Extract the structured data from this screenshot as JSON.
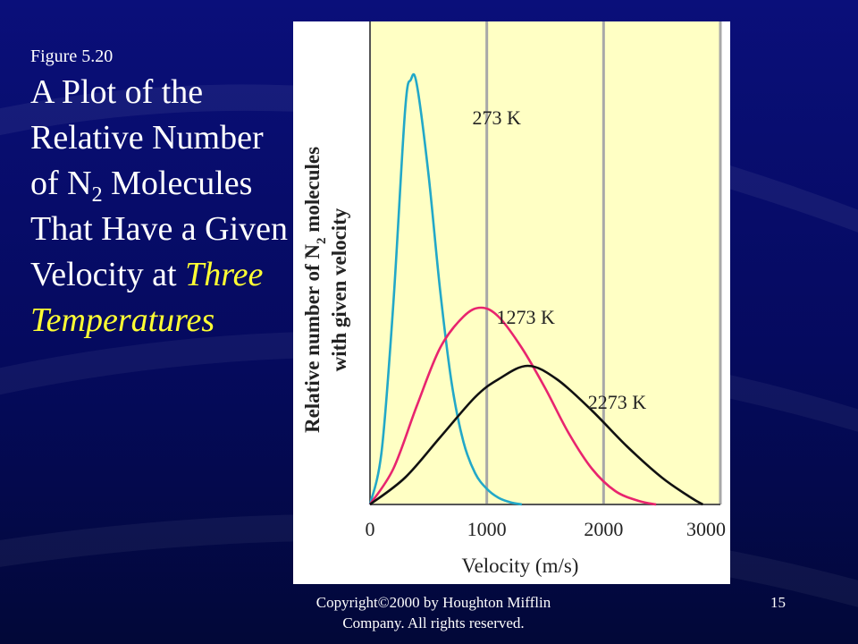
{
  "slide": {
    "figure_label": "Figure 5.20",
    "title_part1": "A Plot of the Relative Number of N",
    "title_sub": "2",
    "title_part2": "Molecules That Have a Given Velocity at",
    "title_emphasis": "Three Temperatures",
    "footer": "Copyright©2000 by Houghton Mifflin Company. All rights reserved.",
    "page_number": "15",
    "colors": {
      "background": "#06106e",
      "title_emphasis": "#ffff33",
      "plot_background": "#ffffc4"
    }
  },
  "chart_data": {
    "type": "line",
    "xlabel": "Velocity (m/s)",
    "ylabel_line1": "Relative number of N",
    "ylabel_sub": "2",
    "ylabel_line1_end": " molecules",
    "ylabel_line2": "with given velocity",
    "xlim": [
      0,
      3000
    ],
    "ylim": [
      0,
      1.0
    ],
    "x_ticks": [
      "0",
      "1000",
      "2000",
      "3000"
    ],
    "grid": "vertical",
    "series": [
      {
        "name": "273 K",
        "color": "#22a8c8",
        "x": [
          0,
          100,
          200,
          300,
          350,
          400,
          500,
          600,
          700,
          800,
          900,
          1000,
          1100,
          1200,
          1300
        ],
        "y": [
          0,
          0.12,
          0.45,
          0.88,
          0.95,
          0.94,
          0.74,
          0.48,
          0.27,
          0.14,
          0.07,
          0.035,
          0.015,
          0.005,
          0
        ]
      },
      {
        "name": "1273 K",
        "color": "#e8246e",
        "x": [
          0,
          200,
          400,
          600,
          800,
          950,
          1100,
          1300,
          1500,
          1700,
          1900,
          2100,
          2300,
          2450
        ],
        "y": [
          0,
          0.08,
          0.22,
          0.35,
          0.42,
          0.44,
          0.42,
          0.35,
          0.26,
          0.16,
          0.08,
          0.03,
          0.008,
          0
        ]
      },
      {
        "name": "2273 K",
        "color": "#111111",
        "x": [
          0,
          300,
          600,
          900,
          1100,
          1350,
          1600,
          1900,
          2200,
          2500,
          2750,
          2850
        ],
        "y": [
          0,
          0.06,
          0.15,
          0.24,
          0.28,
          0.31,
          0.28,
          0.21,
          0.13,
          0.06,
          0.015,
          0
        ]
      }
    ]
  }
}
